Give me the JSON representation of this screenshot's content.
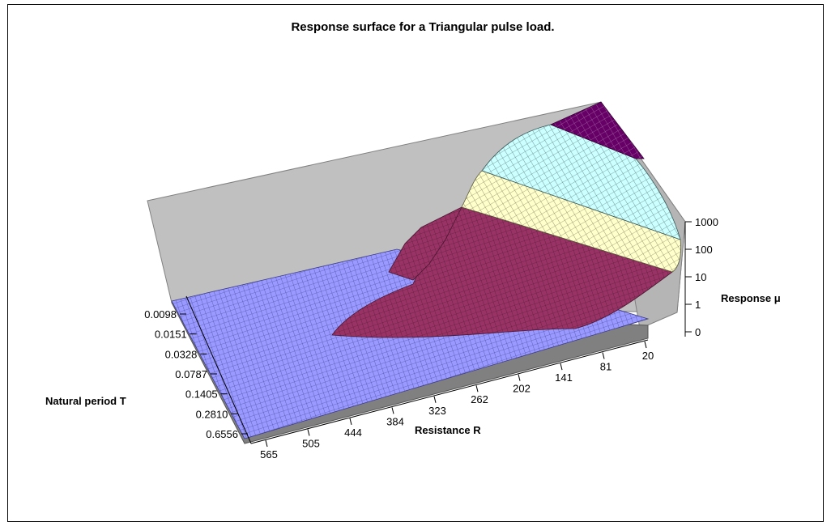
{
  "chart_data": {
    "type": "surface",
    "title": "Response surface for a Triangular pulse load.",
    "x_axis": {
      "label": "Resistance R",
      "ticks": [
        "565",
        "505",
        "444",
        "384",
        "323",
        "262",
        "202",
        "141",
        "81",
        "20"
      ]
    },
    "y_axis": {
      "label": "Natural period T",
      "ticks": [
        "0.0098",
        "0.0151",
        "0.0328",
        "0.0787",
        "0.1405",
        "0.2810",
        "0.6556"
      ]
    },
    "z_axis": {
      "label": "Response μ",
      "scale": "log",
      "ticks": [
        "0",
        "1",
        "10",
        "100",
        "1000"
      ]
    },
    "bands": [
      {
        "range": "0-1",
        "color": "#9999ff"
      },
      {
        "range": "1-10",
        "color": "#993366"
      },
      {
        "range": "10-100",
        "color": "#ffffcc"
      },
      {
        "range": "100-1000",
        "color": "#ccffff"
      },
      {
        "range": ">1000",
        "color": "#660066"
      }
    ],
    "walls": {
      "back_color": "#c0c0c0",
      "floor_color": "#808080"
    }
  }
}
